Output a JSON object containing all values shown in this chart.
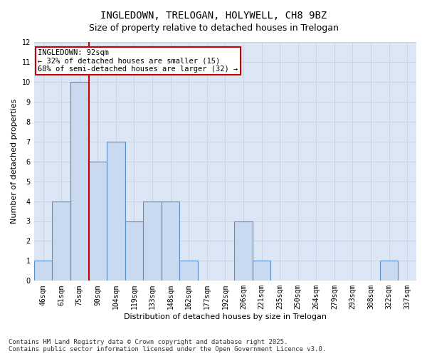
{
  "title_line1": "INGLEDOWN, TRELOGAN, HOLYWELL, CH8 9BZ",
  "title_line2": "Size of property relative to detached houses in Trelogan",
  "xlabel": "Distribution of detached houses by size in Trelogan",
  "ylabel": "Number of detached properties",
  "categories": [
    "46sqm",
    "61sqm",
    "75sqm",
    "90sqm",
    "104sqm",
    "119sqm",
    "133sqm",
    "148sqm",
    "162sqm",
    "177sqm",
    "192sqm",
    "206sqm",
    "221sqm",
    "235sqm",
    "250sqm",
    "264sqm",
    "279sqm",
    "293sqm",
    "308sqm",
    "322sqm",
    "337sqm"
  ],
  "values": [
    1,
    4,
    10,
    6,
    7,
    3,
    4,
    4,
    1,
    0,
    0,
    3,
    1,
    0,
    0,
    0,
    0,
    0,
    0,
    1,
    0
  ],
  "bar_color": "#c9d9f0",
  "bar_edge_color": "#5b8fc9",
  "vline_color": "#cc0000",
  "annotation_text": "INGLEDOWN: 92sqm\n← 32% of detached houses are smaller (15)\n68% of semi-detached houses are larger (32) →",
  "annotation_box_color": "#ffffff",
  "annotation_box_edgecolor": "#cc0000",
  "ylim": [
    0,
    12
  ],
  "yticks": [
    0,
    1,
    2,
    3,
    4,
    5,
    6,
    7,
    8,
    9,
    10,
    11,
    12
  ],
  "grid_color": "#c8d4e8",
  "plot_bg_color": "#dce6f5",
  "footer_text": "Contains HM Land Registry data © Crown copyright and database right 2025.\nContains public sector information licensed under the Open Government Licence v3.0.",
  "title_fontsize": 10,
  "subtitle_fontsize": 9,
  "axis_label_fontsize": 8,
  "tick_fontsize": 7,
  "annotation_fontsize": 7.5,
  "footer_fontsize": 6.5
}
